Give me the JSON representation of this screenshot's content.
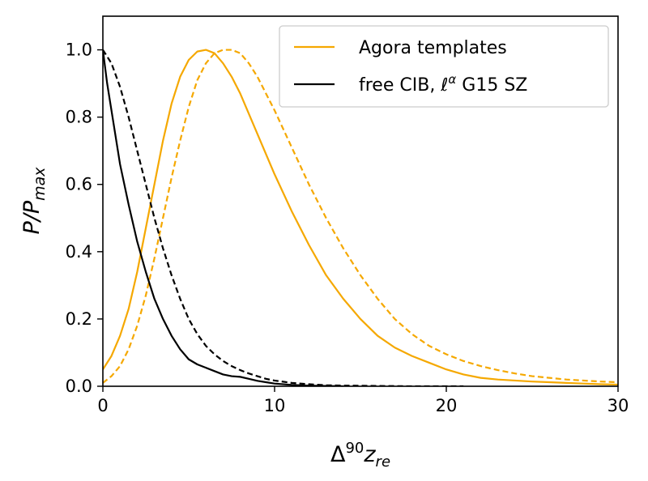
{
  "chart_data": {
    "type": "line",
    "xlabel": {
      "base": "Δ",
      "sup": "90",
      "main": "z",
      "sub": "re"
    },
    "ylabel": {
      "main": "P/P",
      "sub": "max"
    },
    "xlim": [
      0,
      30
    ],
    "ylim": [
      0,
      1.1
    ],
    "xticks": [
      0,
      10,
      20,
      30
    ],
    "xtick_labels": [
      "0",
      "10",
      "20",
      "30"
    ],
    "yticks": [
      0,
      0.2,
      0.4,
      0.6,
      0.8,
      1.0
    ],
    "ytick_labels": [
      "0.0",
      "0.2",
      "0.4",
      "0.6",
      "0.8",
      "1.0"
    ],
    "grid": false,
    "legend_position": "top-right",
    "legend": [
      {
        "label": "Agora templates",
        "color": "#f5a800"
      },
      {
        "label_pre": "free CIB, ",
        "label_ell": "ℓ",
        "label_alpha": "α",
        "label_post": " G15 SZ",
        "color": "#000000"
      }
    ],
    "series": [
      {
        "color": "#f5a800",
        "style": "solid",
        "x": [
          0,
          0.5,
          1,
          1.5,
          2,
          2.5,
          3,
          3.5,
          4,
          4.5,
          5,
          5.5,
          6,
          6.5,
          7,
          7.5,
          8,
          9,
          10,
          11,
          12,
          13,
          14,
          15,
          16,
          17,
          18,
          19,
          20,
          21,
          22,
          23,
          24,
          25,
          26,
          27,
          28,
          29,
          30
        ],
        "y": [
          0.05,
          0.09,
          0.15,
          0.23,
          0.34,
          0.47,
          0.6,
          0.73,
          0.84,
          0.92,
          0.97,
          0.995,
          1.0,
          0.99,
          0.96,
          0.92,
          0.87,
          0.75,
          0.63,
          0.52,
          0.42,
          0.33,
          0.26,
          0.2,
          0.15,
          0.115,
          0.09,
          0.07,
          0.05,
          0.035,
          0.025,
          0.02,
          0.017,
          0.014,
          0.012,
          0.01,
          0.008,
          0.006,
          0.005
        ]
      },
      {
        "color": "#f5a800",
        "style": "dashed",
        "x": [
          0,
          0.5,
          1,
          1.5,
          2,
          2.5,
          3,
          3.5,
          4,
          4.5,
          5,
          5.5,
          6,
          6.5,
          7,
          7.5,
          8,
          8.5,
          9,
          10,
          11,
          12,
          13,
          14,
          15,
          16,
          17,
          18,
          19,
          20,
          21,
          22,
          23,
          24,
          25,
          26,
          27,
          28,
          29,
          30
        ],
        "y": [
          0.01,
          0.03,
          0.06,
          0.11,
          0.18,
          0.27,
          0.38,
          0.5,
          0.62,
          0.73,
          0.83,
          0.91,
          0.96,
          0.99,
          1.0,
          1.0,
          0.99,
          0.96,
          0.92,
          0.82,
          0.71,
          0.6,
          0.5,
          0.41,
          0.33,
          0.26,
          0.2,
          0.155,
          0.12,
          0.095,
          0.075,
          0.06,
          0.048,
          0.038,
          0.03,
          0.025,
          0.02,
          0.017,
          0.014,
          0.012
        ]
      },
      {
        "color": "#000000",
        "style": "solid",
        "x": [
          0,
          0.25,
          0.5,
          1,
          1.5,
          2,
          2.5,
          3,
          3.5,
          4,
          4.5,
          5,
          5.5,
          6,
          6.5,
          7,
          7.5,
          8,
          8.5,
          9,
          9.5,
          10,
          11,
          12,
          13,
          14
        ],
        "y": [
          1.0,
          0.9,
          0.82,
          0.66,
          0.54,
          0.43,
          0.34,
          0.26,
          0.2,
          0.15,
          0.11,
          0.08,
          0.065,
          0.055,
          0.045,
          0.035,
          0.03,
          0.028,
          0.022,
          0.016,
          0.012,
          0.008,
          0.004,
          0.002,
          0.001,
          0.0
        ]
      },
      {
        "color": "#000000",
        "style": "dashed",
        "x": [
          0,
          0.5,
          1,
          1.5,
          2,
          2.5,
          3,
          3.5,
          4,
          4.5,
          5,
          5.5,
          6,
          6.5,
          7,
          7.5,
          8,
          8.5,
          9,
          9.5,
          10,
          11,
          12,
          13,
          14,
          16,
          18,
          20,
          21
        ],
        "y": [
          1.0,
          0.96,
          0.89,
          0.8,
          0.7,
          0.6,
          0.5,
          0.41,
          0.33,
          0.26,
          0.2,
          0.155,
          0.12,
          0.095,
          0.075,
          0.06,
          0.048,
          0.038,
          0.03,
          0.022,
          0.017,
          0.01,
          0.006,
          0.003,
          0.002,
          0.001,
          0.0,
          0.0,
          0.0
        ]
      }
    ]
  }
}
